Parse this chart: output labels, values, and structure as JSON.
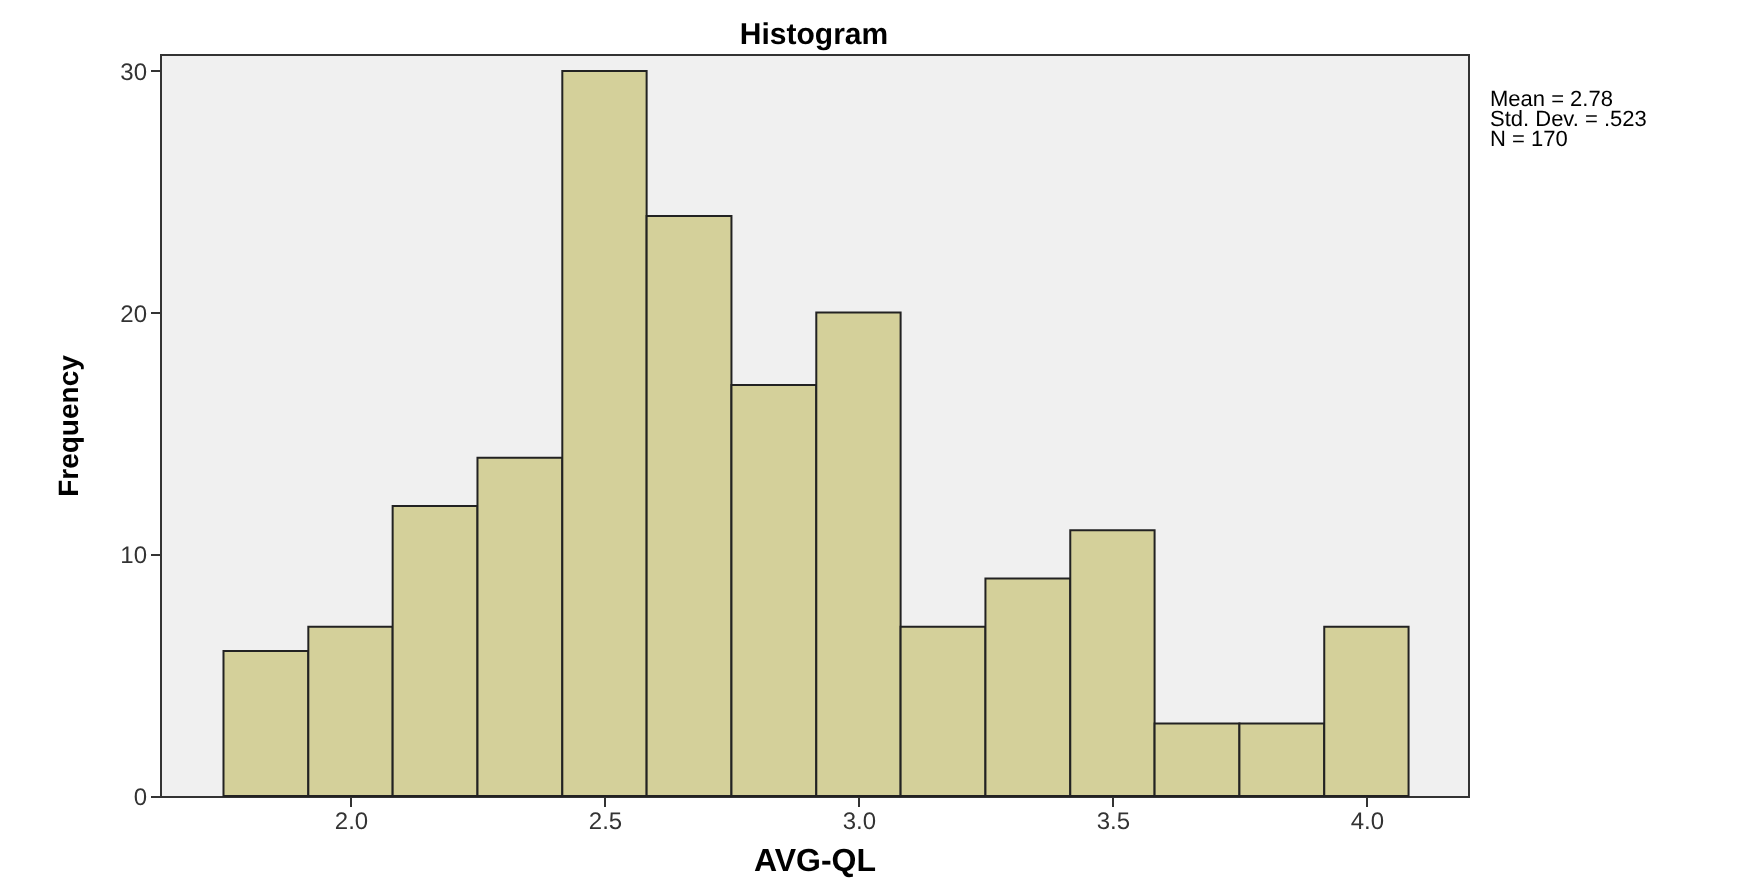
{
  "chart_data": {
    "type": "histogram",
    "title": "Histogram",
    "xlabel": "AVG-QL",
    "ylabel": "Frequency",
    "bins": [
      1.75,
      1.917,
      2.083,
      2.25,
      2.417,
      2.583,
      2.75,
      2.917,
      3.083,
      3.25,
      3.417,
      3.583,
      3.75,
      3.917,
      4.083
    ],
    "values": [
      6,
      7,
      12,
      14,
      30,
      24,
      17,
      20,
      7,
      9,
      11,
      3,
      3,
      7
    ],
    "color": "#d4d09a",
    "xlim": [
      1.625,
      4.2
    ],
    "xticks": [
      {
        "value": 2,
        "label": "2.0"
      },
      {
        "value": 2.5,
        "label": "2.5"
      },
      {
        "value": 3,
        "label": "3.0"
      },
      {
        "value": 3.5,
        "label": "3.5"
      },
      {
        "value": 4,
        "label": "4.0"
      }
    ],
    "ylim": [
      0,
      30.7
    ],
    "yticks": [
      0,
      10,
      20,
      30
    ],
    "annotations": [
      "Mean = 2.78",
      "Std. Dev. = .523",
      "N = 170"
    ]
  }
}
